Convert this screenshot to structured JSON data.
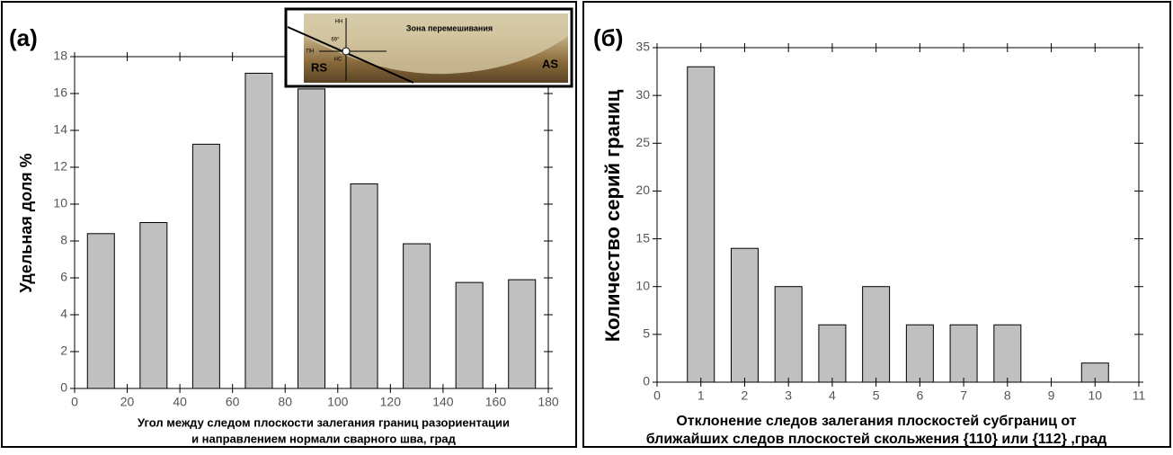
{
  "chart_data": [
    {
      "type": "bar",
      "title": "(a)",
      "ylabel": "Удельная доля %",
      "xlabel_lines": [
        "Угол между следом плоскости залегания границ разориентации",
        "и направлением нормали сварного шва, град"
      ],
      "x": [
        10,
        30,
        50,
        70,
        90,
        110,
        130,
        150,
        170
      ],
      "values": [
        8.4,
        9.0,
        13.25,
        17.1,
        16.25,
        11.1,
        7.85,
        5.75,
        5.9
      ],
      "color": "#c0c0c0",
      "xlim": [
        0,
        180
      ],
      "xticks": [
        0,
        20,
        40,
        60,
        80,
        100,
        120,
        140,
        160,
        180
      ],
      "ylim": [
        0,
        18
      ],
      "yticks": [
        0,
        2,
        4,
        6,
        8,
        10,
        12,
        14,
        16,
        18
      ],
      "inset_labels": [
        "Зона перемешивания",
        "RS",
        "AS",
        "НН",
        "ПН",
        "НС",
        "69°"
      ]
    },
    {
      "type": "bar",
      "title": "(б)",
      "ylabel": "Количество серий границ",
      "xlabel_lines": [
        "Отклонение следов залегания плоскостей субграниц от",
        "ближайших следов плоскостей скольжения {110} или {112} ,град"
      ],
      "x": [
        1,
        2,
        3,
        4,
        5,
        6,
        7,
        8,
        9,
        10
      ],
      "values": [
        33,
        14,
        10,
        6,
        10,
        6,
        6,
        6,
        0,
        2
      ],
      "color": "#c0c0c0",
      "xlim": [
        0,
        11
      ],
      "xticks": [
        0,
        1,
        2,
        3,
        4,
        5,
        6,
        7,
        8,
        9,
        10,
        11
      ],
      "ylim": [
        0,
        35
      ],
      "yticks": [
        0,
        5,
        10,
        15,
        20,
        25,
        30,
        35
      ]
    }
  ]
}
